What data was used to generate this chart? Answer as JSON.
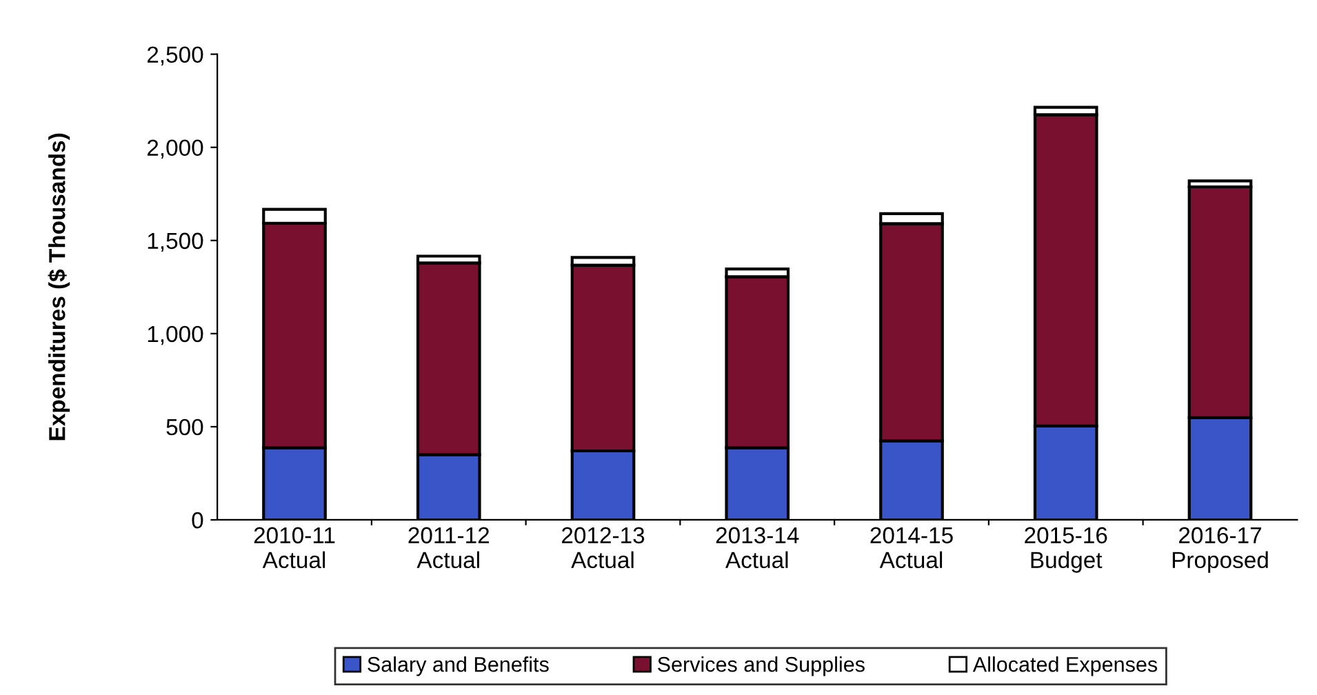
{
  "chart_data": {
    "type": "bar",
    "stacked": true,
    "ylabel": "Expenditures ($ Thousands)",
    "categories": [
      "2010-11\nActual",
      "2011-12\nActual",
      "2012-13\nActual",
      "2013-14\nActual",
      "2014-15\nActual",
      "2015-16\nBudget",
      "2016-17\nProposed"
    ],
    "series": [
      {
        "name": "Salary and Benefits",
        "color": "#3a55c8",
        "values": [
          387,
          350,
          370,
          387,
          424,
          504,
          548
        ]
      },
      {
        "name": "Services and Supplies",
        "color": "#7a1030",
        "values": [
          1205,
          1029,
          997,
          918,
          1166,
          1671,
          1240
        ]
      },
      {
        "name": "Allocated Expenses",
        "color": "#ffffff",
        "values": [
          75,
          37,
          42,
          42,
          54,
          40,
          32
        ]
      }
    ],
    "ylim": [
      0,
      2500
    ],
    "yticks": [
      {
        "value": 0,
        "label": "0"
      },
      {
        "value": 500,
        "label": "500"
      },
      {
        "value": 1000,
        "label": "1,000"
      },
      {
        "value": 1500,
        "label": "1,500"
      },
      {
        "value": 2000,
        "label": "2,000"
      },
      {
        "value": 2500,
        "label": "2,500"
      }
    ],
    "grid": false,
    "legend": "bottom"
  }
}
